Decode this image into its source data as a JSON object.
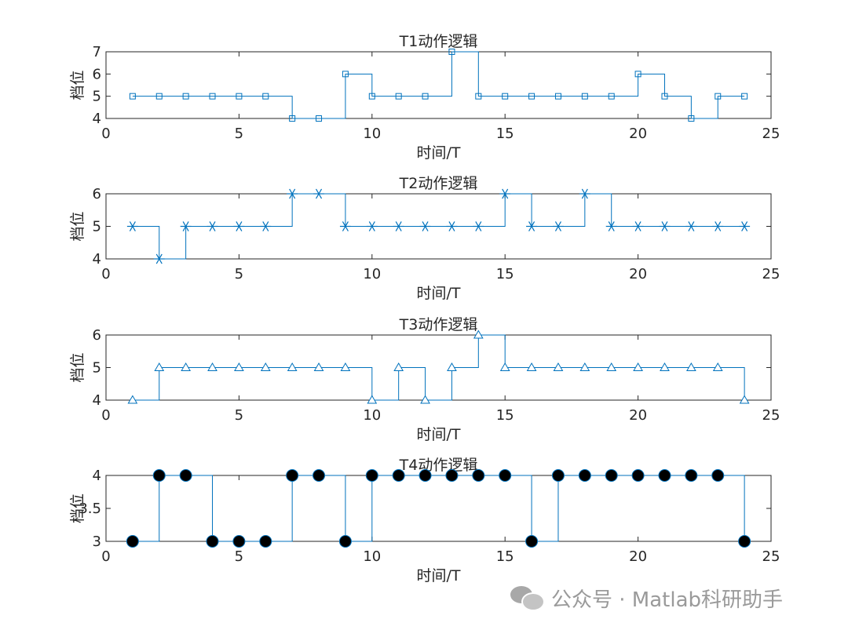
{
  "chart_data": [
    {
      "type": "line",
      "step": "post",
      "title": "T1动作逻辑",
      "xlabel": "时间/T",
      "ylabel": "档位",
      "xlim": [
        0,
        25
      ],
      "ylim": [
        4,
        7
      ],
      "xticks": [
        0,
        5,
        10,
        15,
        20,
        25
      ],
      "yticks": [
        4,
        5,
        6,
        7
      ],
      "marker": "square",
      "color": "#0072BD",
      "x": [
        1,
        2,
        3,
        4,
        5,
        6,
        7,
        8,
        9,
        10,
        11,
        12,
        13,
        14,
        15,
        16,
        17,
        18,
        19,
        20,
        21,
        22,
        23,
        24
      ],
      "y": [
        5,
        5,
        5,
        5,
        5,
        5,
        4,
        4,
        6,
        5,
        5,
        5,
        7,
        5,
        5,
        5,
        5,
        5,
        5,
        6,
        5,
        4,
        5,
        5
      ]
    },
    {
      "type": "line",
      "step": "post",
      "title": "T2动作逻辑",
      "xlabel": "时间/T",
      "ylabel": "档位",
      "xlim": [
        0,
        25
      ],
      "ylim": [
        4,
        6
      ],
      "xticks": [
        0,
        5,
        10,
        15,
        20,
        25
      ],
      "yticks": [
        4,
        5,
        6
      ],
      "marker": "asterisk",
      "color": "#0072BD",
      "x": [
        1,
        2,
        3,
        4,
        5,
        6,
        7,
        8,
        9,
        10,
        11,
        12,
        13,
        14,
        15,
        16,
        17,
        18,
        19,
        20,
        21,
        22,
        23,
        24
      ],
      "y": [
        5,
        4,
        5,
        5,
        5,
        5,
        6,
        6,
        5,
        5,
        5,
        5,
        5,
        5,
        6,
        5,
        5,
        6,
        5,
        5,
        5,
        5,
        5,
        5
      ]
    },
    {
      "type": "line",
      "step": "post",
      "title": "T3动作逻辑",
      "xlabel": "时间/T",
      "ylabel": "档位",
      "xlim": [
        0,
        25
      ],
      "ylim": [
        4,
        6
      ],
      "xticks": [
        0,
        5,
        10,
        15,
        20,
        25
      ],
      "yticks": [
        4,
        5,
        6
      ],
      "marker": "triangle",
      "color": "#0072BD",
      "x": [
        1,
        2,
        3,
        4,
        5,
        6,
        7,
        8,
        9,
        10,
        11,
        12,
        13,
        14,
        15,
        16,
        17,
        18,
        19,
        20,
        21,
        22,
        23,
        24
      ],
      "y": [
        4,
        5,
        5,
        5,
        5,
        5,
        5,
        5,
        5,
        4,
        5,
        4,
        5,
        6,
        5,
        5,
        5,
        5,
        5,
        5,
        5,
        5,
        5,
        4
      ]
    },
    {
      "type": "line",
      "step": "post",
      "title": "T4动作逻辑",
      "xlabel": "时间/T",
      "ylabel": "档位",
      "xlim": [
        0,
        25
      ],
      "ylim": [
        3,
        4
      ],
      "xticks": [
        0,
        5,
        10,
        15,
        20,
        25
      ],
      "yticks": [
        3,
        3.5,
        4
      ],
      "marker": "filled-circle",
      "color": "#0072BD",
      "x": [
        1,
        2,
        3,
        4,
        5,
        6,
        7,
        8,
        9,
        10,
        11,
        12,
        13,
        14,
        15,
        16,
        17,
        18,
        19,
        20,
        21,
        22,
        23,
        24
      ],
      "y": [
        3,
        4,
        4,
        3,
        3,
        3,
        4,
        4,
        3,
        4,
        4,
        4,
        4,
        4,
        4,
        3,
        4,
        4,
        4,
        4,
        4,
        4,
        4,
        3
      ]
    }
  ],
  "watermark": {
    "text": "公众号 · Matlab科研助手",
    "icon": "wechat-icon"
  }
}
